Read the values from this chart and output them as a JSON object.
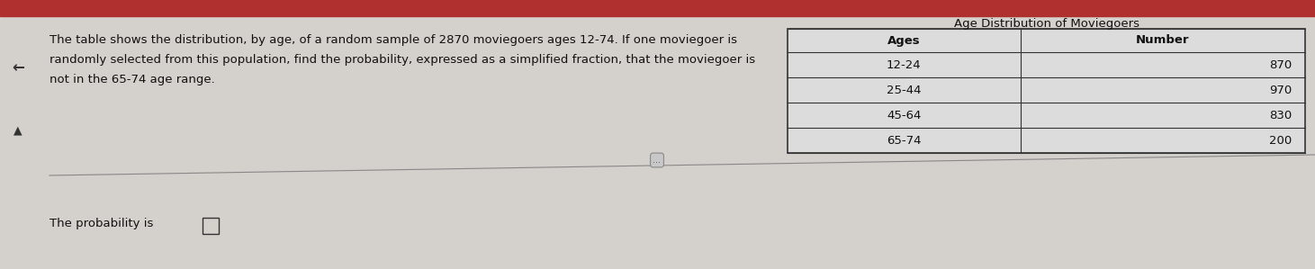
{
  "bg_color": "#d4d0cc",
  "top_bar_color": "#b03030",
  "main_text_line1": "The table shows the distribution, by age, of a random sample of 2870 moviegoers ages 12-74. If one moviegoer is",
  "main_text_line2": "randomly selected from this population, find the probability, expressed as a simplified fraction, that the moviegoer is",
  "main_text_line3": "not in the 65-74 age range.",
  "bottom_text": "The probability is",
  "table_title": "Age Distribution of Moviegoers",
  "table_headers": [
    "Ages",
    "Number"
  ],
  "table_rows": [
    [
      "12-24",
      "870"
    ],
    [
      "25-44",
      "970"
    ],
    [
      "45-64",
      "830"
    ],
    [
      "65-74",
      "200"
    ]
  ],
  "text_color": "#111111",
  "table_line_color": "#333333",
  "table_bg": "#dcdcdc",
  "body_fontsize": 9.5,
  "table_fontsize": 9.5,
  "title_fontsize": 9.5
}
